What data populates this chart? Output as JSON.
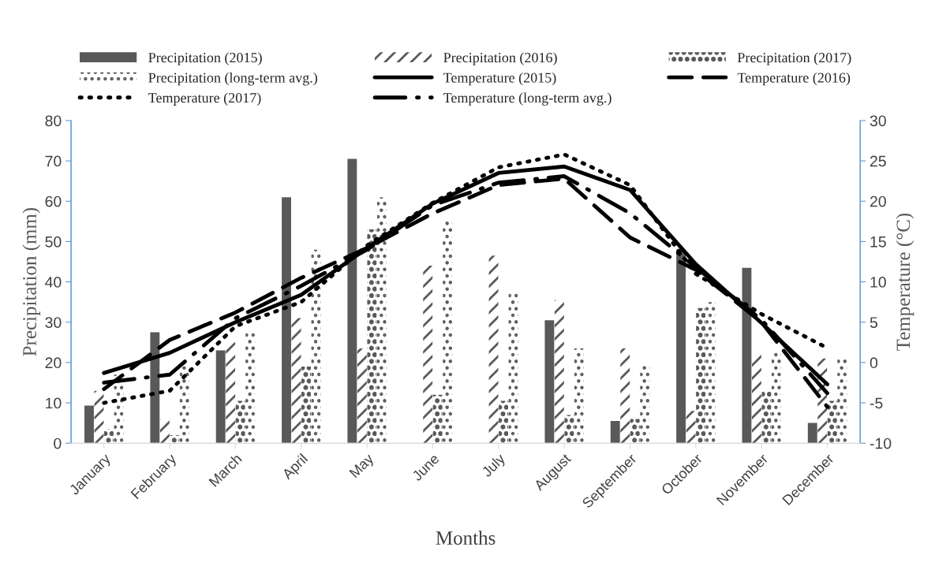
{
  "chart_data": {
    "type": "bar",
    "xlabel": "Months",
    "ylabel": "Precipitation (mm)",
    "y2label": "Temperature (°C)",
    "categories": [
      "January",
      "February",
      "March",
      "April",
      "May",
      "June",
      "July",
      "August",
      "September",
      "October",
      "November",
      "December"
    ],
    "series": [
      {
        "name": "Precipitation (2015)",
        "color": "#595959",
        "values": [
          9.3,
          27.5,
          23,
          61,
          70.5,
          0,
          0,
          30.5,
          5.5,
          48,
          43.5,
          5
        ]
      },
      {
        "name": "Precipitation (2016)",
        "color": "#595959",
        "values": [
          13,
          6,
          25,
          31,
          23.5,
          44,
          46.5,
          35.5,
          23.5,
          8,
          22,
          21
        ]
      },
      {
        "name": "Precipitation (2017)",
        "color": "#595959",
        "values": [
          3.5,
          2,
          10.5,
          19,
          53,
          12,
          10.5,
          7,
          6,
          33.5,
          13,
          10.5
        ]
      },
      {
        "name": "Precipitation (long-term avg.)",
        "color": "#595959",
        "values": [
          17,
          19,
          28,
          48,
          61,
          55,
          37.5,
          23.5,
          19.5,
          35,
          23,
          21
        ]
      },
      {
        "name": "Temperature (2015)",
        "type": "line",
        "axis": "y2",
        "color": "#000000",
        "line_style": "solid",
        "values": [
          -1.3,
          1.2,
          5,
          8.4,
          14.2,
          19.7,
          23.5,
          24.3,
          21.4,
          12.2,
          4.9,
          -2.7
        ]
      },
      {
        "name": "Temperature (2016)",
        "type": "line",
        "axis": "y2",
        "color": "#000000",
        "line_style": "dashed",
        "values": [
          -3.3,
          2.8,
          6.2,
          10.5,
          14.2,
          18.5,
          22,
          22.8,
          15.5,
          11.5,
          5,
          -5.5
        ]
      },
      {
        "name": "Temperature (2017)",
        "type": "line",
        "axis": "y2",
        "color": "#000000",
        "line_style": "dotted",
        "values": [
          -5,
          -3.5,
          4.5,
          7.5,
          14.5,
          19.8,
          24.2,
          25.8,
          22,
          11,
          6,
          1.8
        ]
      },
      {
        "name": "Temperature (long-term avg.)",
        "type": "line",
        "axis": "y2",
        "color": "#000000",
        "line_style": "dashdot",
        "values": [
          -2.5,
          -1.5,
          5.5,
          9.5,
          14,
          19.5,
          22.3,
          23.1,
          18.5,
          11.8,
          5.3,
          -3.8
        ]
      }
    ],
    "ylim": [
      0,
      80
    ],
    "yticks": [
      0,
      10,
      20,
      30,
      40,
      50,
      60,
      70,
      80
    ],
    "y2lim": [
      -10,
      30
    ],
    "y2ticks": [
      -10,
      -5,
      0,
      5,
      10,
      15,
      20,
      25,
      30
    ],
    "grid": false,
    "legend": "top"
  }
}
